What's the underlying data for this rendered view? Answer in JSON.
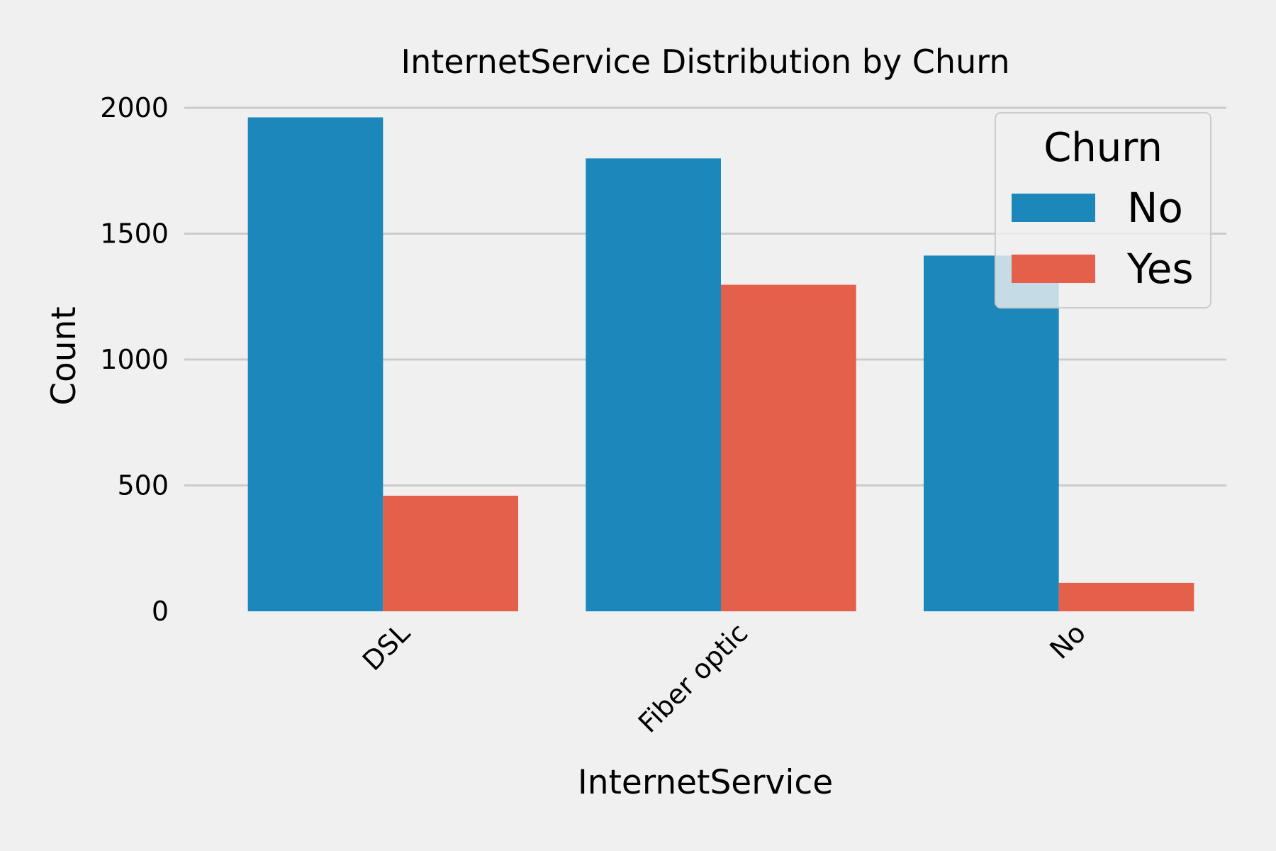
{
  "chart_data": {
    "type": "bar",
    "title": "InternetService Distribution by Churn",
    "xlabel": "InternetService",
    "ylabel": "Count",
    "categories": [
      "DSL",
      "Fiber optic",
      "No"
    ],
    "series": [
      {
        "name": "No",
        "values": [
          1962,
          1799,
          1413
        ],
        "color": "#1c87bb"
      },
      {
        "name": "Yes",
        "values": [
          459,
          1297,
          113
        ],
        "color": "#e5604a"
      }
    ],
    "ylim": [
      0,
      2000
    ],
    "yticks": [
      0,
      500,
      1000,
      1500,
      2000
    ],
    "grid": "horizontal",
    "legend": {
      "title": "Churn",
      "placement": "top-right"
    },
    "colors": {
      "background": "#f0f0f0",
      "grid": "#cbcbcb"
    }
  }
}
